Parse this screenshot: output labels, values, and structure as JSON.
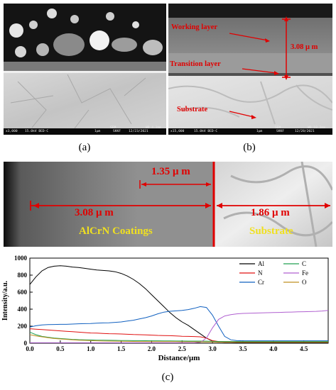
{
  "panel_a": {
    "caption": "(a)",
    "sem": {
      "scale": "1μm",
      "org": "SKKF",
      "date": "12/23/2021",
      "mag": "x3,000",
      "kv": "15.0kV BED-C",
      "mode": "SEM",
      "wd": "WD 4.2mm"
    }
  },
  "panel_b": {
    "caption": "(b)",
    "labels": {
      "working": "Working layer",
      "transition": "Transition layer",
      "substrate": "Substrate",
      "thickness": "3.08 μ m"
    },
    "sem": {
      "scale": "1μm",
      "org": "SKKF",
      "date": "12/28/2021",
      "mag": "x15,000",
      "kv": "15.0kV BED-C",
      "mode": "SEM",
      "wd": "WD 10.2mm"
    }
  },
  "panel_c_image": {
    "labels": {
      "top": "1.35 μ m",
      "left": "3.08 μ m",
      "right": "1.86 μ m",
      "coatings": "AlCrN Coatings",
      "substrate": "Substrate"
    }
  },
  "caption_c": "(c)",
  "chart_data": {
    "type": "line",
    "xlabel": "Distance/μm",
    "ylabel": "Intensity/a.u.",
    "xlim": [
      0,
      4.9
    ],
    "ylim": [
      0,
      1000
    ],
    "xticks": [
      "0.0",
      "0.5",
      "1.0",
      "1.5",
      "2.0",
      "2.5",
      "3.0",
      "3.5",
      "4.0",
      "4.5"
    ],
    "yticks": [
      "0",
      "200",
      "400",
      "600",
      "800",
      "1000"
    ],
    "legend_position": "top-right",
    "x": [
      0.0,
      0.1,
      0.2,
      0.3,
      0.4,
      0.5,
      0.6,
      0.7,
      0.8,
      0.9,
      1.0,
      1.1,
      1.2,
      1.3,
      1.4,
      1.5,
      1.6,
      1.7,
      1.8,
      1.9,
      2.0,
      2.1,
      2.2,
      2.3,
      2.4,
      2.5,
      2.6,
      2.7,
      2.8,
      2.9,
      3.0,
      3.1,
      3.2,
      3.3,
      3.4,
      3.5,
      3.6,
      3.7,
      3.8,
      3.9,
      4.0,
      4.1,
      4.2,
      4.3,
      4.4,
      4.5,
      4.6,
      4.7,
      4.8,
      4.9
    ],
    "series": [
      {
        "name": "Al",
        "color": "#000000",
        "values": [
          690,
          780,
          850,
          890,
          905,
          910,
          905,
          895,
          890,
          880,
          870,
          860,
          855,
          850,
          840,
          820,
          790,
          750,
          700,
          640,
          570,
          500,
          430,
          360,
          300,
          250,
          210,
          160,
          110,
          60,
          25,
          15,
          10,
          10,
          8,
          8,
          8,
          8,
          8,
          8,
          8,
          8,
          8,
          8,
          8,
          8,
          8,
          8,
          8,
          8
        ]
      },
      {
        "name": "N",
        "color": "#e01010",
        "values": [
          170,
          165,
          160,
          155,
          150,
          145,
          140,
          135,
          130,
          125,
          120,
          118,
          115,
          112,
          110,
          108,
          105,
          102,
          100,
          98,
          95,
          92,
          90,
          88,
          85,
          82,
          80,
          78,
          75,
          60,
          30,
          20,
          18,
          18,
          18,
          18,
          18,
          18,
          18,
          18,
          18,
          18,
          18,
          18,
          18,
          18,
          18,
          18,
          18,
          18
        ]
      },
      {
        "name": "Cr",
        "color": "#1060c0",
        "values": [
          190,
          205,
          215,
          218,
          220,
          222,
          222,
          225,
          228,
          230,
          232,
          235,
          238,
          240,
          245,
          250,
          260,
          270,
          285,
          300,
          320,
          345,
          365,
          375,
          380,
          385,
          395,
          410,
          430,
          420,
          330,
          200,
          80,
          40,
          30,
          28,
          28,
          28,
          28,
          28,
          28,
          28,
          28,
          28,
          28,
          28,
          28,
          28,
          28,
          28
        ]
      },
      {
        "name": "C",
        "color": "#20a050",
        "values": [
          130,
          100,
          80,
          70,
          60,
          55,
          50,
          45,
          42,
          40,
          38,
          36,
          35,
          34,
          33,
          32,
          31,
          30,
          30,
          29,
          28,
          28,
          27,
          27,
          26,
          26,
          25,
          25,
          25,
          24,
          22,
          20,
          20,
          20,
          20,
          20,
          20,
          20,
          20,
          20,
          20,
          20,
          20,
          20,
          20,
          20,
          20,
          20,
          20,
          20
        ]
      },
      {
        "name": "Fe",
        "color": "#b060d0",
        "values": [
          5,
          5,
          5,
          5,
          5,
          5,
          5,
          5,
          5,
          5,
          5,
          5,
          5,
          5,
          5,
          5,
          5,
          5,
          5,
          5,
          5,
          5,
          5,
          5,
          5,
          5,
          5,
          5,
          10,
          60,
          180,
          280,
          320,
          335,
          345,
          350,
          352,
          354,
          356,
          358,
          360,
          362,
          364,
          366,
          368,
          370,
          372,
          374,
          378,
          385
        ]
      },
      {
        "name": "O",
        "color": "#c09020",
        "values": [
          100,
          85,
          75,
          65,
          55,
          50,
          45,
          40,
          36,
          33,
          30,
          28,
          26,
          25,
          24,
          23,
          22,
          21,
          20,
          20,
          19,
          19,
          18,
          18,
          18,
          17,
          17,
          17,
          16,
          15,
          14,
          12,
          12,
          12,
          12,
          12,
          12,
          12,
          12,
          12,
          12,
          12,
          12,
          12,
          12,
          12,
          12,
          12,
          12,
          12
        ]
      }
    ]
  }
}
